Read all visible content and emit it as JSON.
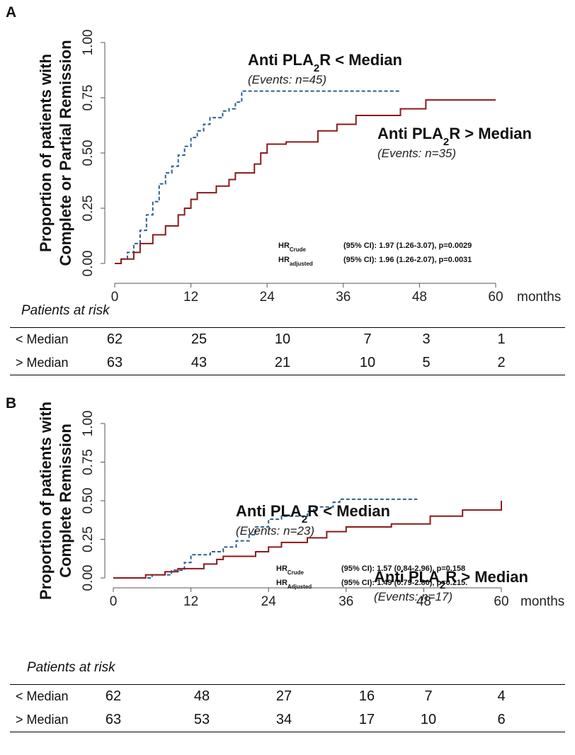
{
  "chart_data": [
    {
      "panel": "A",
      "type": "line",
      "ylabel_lines": [
        "Proportion of patients with",
        "Complete or Partial Remission"
      ],
      "x_ticks": [
        "0",
        "12",
        "24",
        "36",
        "48",
        "60"
      ],
      "x_unit": "months",
      "y_ticks": [
        "0.00",
        "0.25",
        "0.50",
        "0.75",
        "1.00"
      ],
      "xlim": [
        0,
        60
      ],
      "ylim": [
        0,
        1
      ],
      "series": [
        {
          "color": "#2e5f8f",
          "style": "dashed",
          "points": [
            [
              0,
              0
            ],
            [
              1,
              0.02
            ],
            [
              2,
              0.05
            ],
            [
              3,
              0.09
            ],
            [
              4,
              0.15
            ],
            [
              5,
              0.22
            ],
            [
              6,
              0.28
            ],
            [
              7,
              0.36
            ],
            [
              8,
              0.41
            ],
            [
              9,
              0.44
            ],
            [
              10,
              0.49
            ],
            [
              11,
              0.53
            ],
            [
              12,
              0.57
            ],
            [
              13,
              0.6
            ],
            [
              14,
              0.63
            ],
            [
              15,
              0.66
            ],
            [
              17,
              0.69
            ],
            [
              18,
              0.7
            ],
            [
              19,
              0.73
            ],
            [
              20,
              0.78
            ],
            [
              45,
              0.78
            ]
          ]
        },
        {
          "color": "#8b1a1a",
          "style": "solid",
          "points": [
            [
              0,
              0
            ],
            [
              1,
              0.02
            ],
            [
              3,
              0.05
            ],
            [
              4,
              0.09
            ],
            [
              6,
              0.13
            ],
            [
              8,
              0.17
            ],
            [
              10,
              0.22
            ],
            [
              11,
              0.25
            ],
            [
              12,
              0.29
            ],
            [
              13,
              0.32
            ],
            [
              16,
              0.35
            ],
            [
              18,
              0.38
            ],
            [
              19,
              0.41
            ],
            [
              22,
              0.45
            ],
            [
              23,
              0.5
            ],
            [
              24,
              0.54
            ],
            [
              27,
              0.55
            ],
            [
              32,
              0.6
            ],
            [
              35,
              0.63
            ],
            [
              38,
              0.67
            ],
            [
              45,
              0.7
            ],
            [
              49,
              0.74
            ],
            [
              60,
              0.74
            ]
          ]
        }
      ],
      "annotations": [
        {
          "title": "Anti PLA",
          "sub": "2",
          "title_end": "R < Median",
          "events": "(Events: n=45)"
        },
        {
          "title": "Anti PLA",
          "sub": "2",
          "title_end": "R > Median",
          "events": "(Events: n=35)"
        }
      ],
      "hr": [
        {
          "label": "HR",
          "sub": "Crude",
          "text": "(95% CI):  1.97 (1.26-3.07), p=0.0029"
        },
        {
          "label": "HR",
          "sub": "adjusted",
          "text": "(95% CI):  1.96 (1.26-2.07), p=0.0031"
        }
      ],
      "risk_table": {
        "title": "Patients at risk",
        "rows": [
          {
            "label": "< Median",
            "values": [
              "62",
              "25",
              "10",
              "7",
              "3",
              "1"
            ]
          },
          {
            "label": "> Median",
            "values": [
              "63",
              "43",
              "21",
              "10",
              "5",
              "2"
            ]
          }
        ]
      }
    },
    {
      "panel": "B",
      "type": "line",
      "ylabel_lines": [
        "Proportion of patients with",
        "Complete Remission"
      ],
      "x_ticks": [
        "0",
        "12",
        "24",
        "36",
        "48",
        "60"
      ],
      "x_unit": "months",
      "y_ticks": [
        "0.00",
        "0.25",
        "0.50",
        "0.75",
        "1.00"
      ],
      "xlim": [
        0,
        60
      ],
      "ylim": [
        0,
        1
      ],
      "series": [
        {
          "color": "#2e5f8f",
          "style": "dashed",
          "points": [
            [
              0,
              0
            ],
            [
              5,
              0
            ],
            [
              6,
              0.02
            ],
            [
              9,
              0.05
            ],
            [
              11,
              0.1
            ],
            [
              12,
              0.15
            ],
            [
              15,
              0.17
            ],
            [
              17,
              0.2
            ],
            [
              19,
              0.24
            ],
            [
              21,
              0.28
            ],
            [
              22,
              0.33
            ],
            [
              24,
              0.38
            ],
            [
              26,
              0.4
            ],
            [
              28,
              0.4
            ],
            [
              30,
              0.43
            ],
            [
              31,
              0.46
            ],
            [
              34,
              0.49
            ],
            [
              35,
              0.51
            ],
            [
              47,
              0.51
            ]
          ]
        },
        {
          "color": "#8b1a1a",
          "style": "solid",
          "points": [
            [
              0,
              0
            ],
            [
              5,
              0.02
            ],
            [
              8,
              0.04
            ],
            [
              10,
              0.06
            ],
            [
              14,
              0.09
            ],
            [
              16,
              0.12
            ],
            [
              17,
              0.14
            ],
            [
              22,
              0.17
            ],
            [
              24,
              0.2
            ],
            [
              26,
              0.23
            ],
            [
              30,
              0.26
            ],
            [
              33,
              0.3
            ],
            [
              36,
              0.33
            ],
            [
              43,
              0.35
            ],
            [
              49,
              0.4
            ],
            [
              54,
              0.44
            ],
            [
              60,
              0.44
            ],
            [
              60,
              0.5
            ]
          ]
        }
      ],
      "annotations": [
        {
          "title": "Anti PLA",
          "sub": "2",
          "title_end": "R < Median",
          "events": "(Events: n=23)"
        },
        {
          "title": "Anti PLA",
          "sub": "2",
          "title_end": "R > Median",
          "events": "(Events: n=17)"
        }
      ],
      "hr": [
        {
          "label": "HR",
          "sub": "Crude",
          "text": "(95% CI): 1.57 (0.84-2.96), p=0.158"
        },
        {
          "label": "HR",
          "sub": "Adjusted",
          "text": "(95% CI): 1.49 (0.79-2.80), p=0.215."
        }
      ],
      "risk_table": {
        "title": "Patients at risk",
        "rows": [
          {
            "label": "< Median",
            "values": [
              "62",
              "48",
              "27",
              "16",
              "7",
              "4"
            ]
          },
          {
            "label": "> Median",
            "values": [
              "63",
              "53",
              "34",
              "17",
              "10",
              "6"
            ]
          }
        ]
      }
    }
  ]
}
